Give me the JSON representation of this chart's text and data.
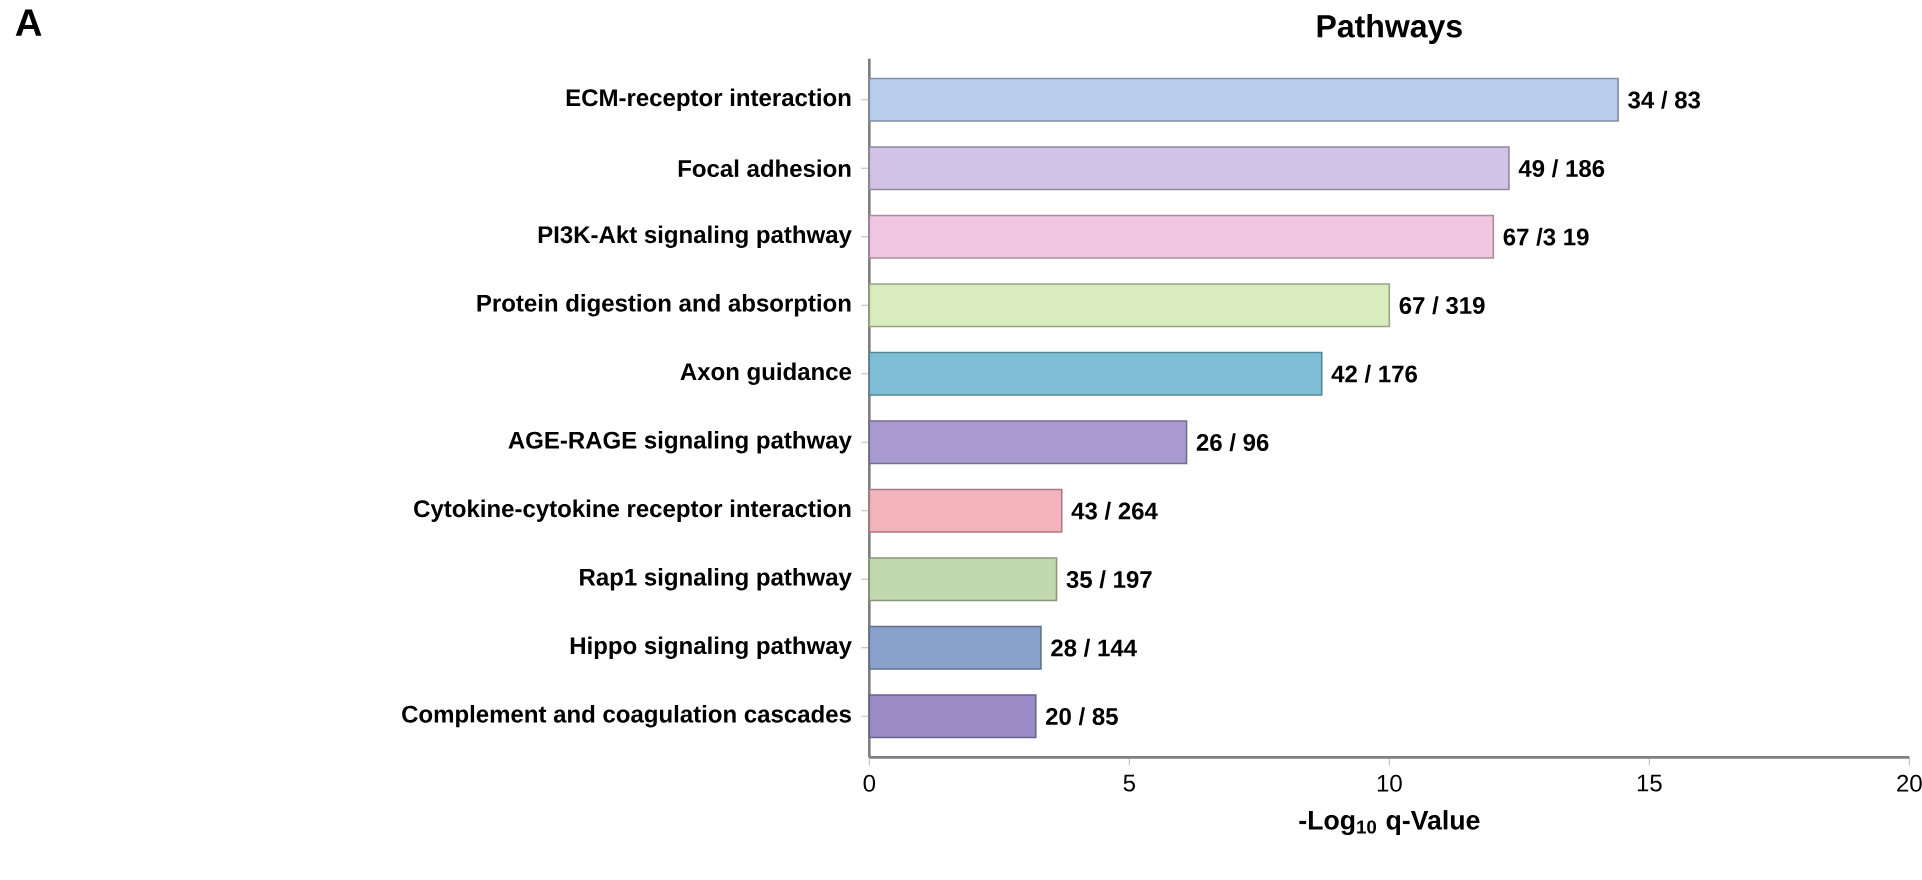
{
  "chart_data": {
    "type": "bar",
    "orientation": "horizontal",
    "title": "Pathways",
    "xlabel": "-Log$_{10}$ q-Value",
    "annotations": [
      "A",
      {
        "text": "34 / 83",
        "x": 14.4,
        "y": "ECM-receptor interaction"
      },
      {
        "text": "49 / 186",
        "x": 12.3,
        "y": "Focal adhesion"
      },
      {
        "text": "67 /3 19",
        "x": 12.0,
        "y": "PI3K-Akt signaling pathway"
      },
      {
        "text": "67 / 319",
        "x": 10.0,
        "y": "Protein digestion and absorption"
      },
      {
        "text": "42 / 176",
        "x": 8.7,
        "y": "Axon guidance"
      },
      {
        "text": "26 / 96",
        "x": 6.1,
        "y": "AGE-RAGE signaling pathway"
      },
      {
        "text": "43 / 264",
        "x": 3.7,
        "y": "Cytokine-cytokine receptor interaction"
      },
      {
        "text": "35 / 197",
        "x": 3.6,
        "y": "Rap1 signaling pathway"
      },
      {
        "text": "28 / 144",
        "x": 3.3,
        "y": "Hippo signaling pathway"
      },
      {
        "text": "20 / 85",
        "x": 3.2,
        "y": "Complement and coagulation cascades"
      }
    ],
    "categories": [
      "ECM-receptor interaction",
      "Focal adhesion",
      "PI3K-Akt signaling pathway",
      "Protein digestion and absorption",
      "Axon guidance",
      "AGE-RAGE signaling pathway",
      "Cytokine-cytokine receptor interaction",
      "Rap1 signaling pathway",
      "Hippo signaling pathway",
      "Complement and coagulation cascades"
    ],
    "values": [
      14.4,
      12.3,
      12.0,
      10.0,
      8.7,
      6.1,
      3.7,
      3.6,
      3.3,
      3.2
    ],
    "colors": [
      "#b8cdec",
      "#d0c3e6",
      "#f0c6e3",
      "#d9ecbd",
      "#7ebfd6",
      "#a99bd0",
      "#f2b3bb",
      "#c2d9ad",
      "#8aa2cb",
      "#9a8bc6"
    ],
    "xlim": [
      0,
      20
    ],
    "xticks": [
      0,
      5,
      10,
      15,
      20
    ]
  }
}
